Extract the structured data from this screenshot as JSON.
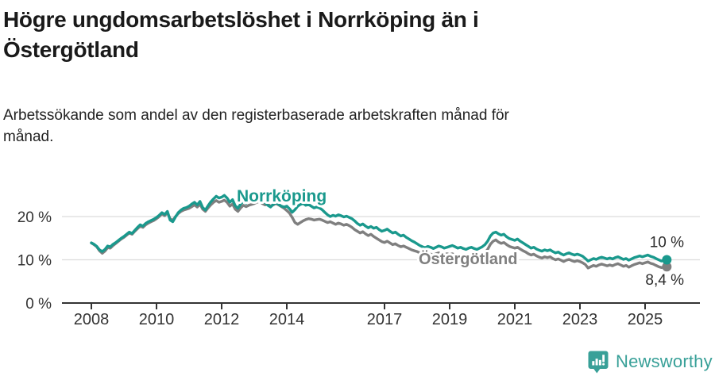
{
  "title_lines": [
    "Högre ungdomsarbetslöshet i Norrköping än i",
    "Östergötland"
  ],
  "subtitle_lines": [
    "Arbetssökande som andel av den registerbaserade arbetskraften månad för",
    "månad."
  ],
  "footer": {
    "brand": "Newsworthy",
    "logo_icon": "newsworthy-chart-speech-bubble-icon"
  },
  "colors": {
    "norrkoping": "#1a998d",
    "ostergotland": "#7f7f7f",
    "axis": "#333333",
    "grid": "#dcdcdc",
    "title": "#1a1a1a",
    "end_label": "#2b2b2b",
    "brand": "#38a098"
  },
  "chart_data": {
    "type": "line",
    "unit": "%",
    "frequency": "monthly",
    "x_start": {
      "year": 2008,
      "month": 1
    },
    "x_end": {
      "year": 2025,
      "month": 9
    },
    "x_tick_years": [
      2008,
      2010,
      2012,
      2014,
      2017,
      2019,
      2021,
      2023,
      2025
    ],
    "y_ticks": [
      {
        "value": 0,
        "label": "0 %"
      },
      {
        "value": 10,
        "label": "10 %"
      },
      {
        "value": 20,
        "label": "20 %"
      }
    ],
    "ylim": [
      0,
      27
    ],
    "grid": "horizontal",
    "series": [
      {
        "name": "Östergötland",
        "color": "#7f7f7f",
        "end_label": "8,4 %",
        "end_value": 8.4,
        "values": [
          13.9,
          13.5,
          13.0,
          12.1,
          11.5,
          12.0,
          12.8,
          12.7,
          13.3,
          13.8,
          14.3,
          14.8,
          15.2,
          15.7,
          16.2,
          15.9,
          16.6,
          17.2,
          17.8,
          17.5,
          18.1,
          18.5,
          18.8,
          19.1,
          19.5,
          20.0,
          20.6,
          20.2,
          20.9,
          19.5,
          19.1,
          20.0,
          20.7,
          21.2,
          21.5,
          21.7,
          21.9,
          22.3,
          22.7,
          22.2,
          22.9,
          21.7,
          21.2,
          22.0,
          22.7,
          23.3,
          23.7,
          23.3,
          23.5,
          23.8,
          23.3,
          22.4,
          22.9,
          21.7,
          21.2,
          22.0,
          22.6,
          22.3,
          22.6,
          22.8,
          23.0,
          23.3,
          23.5,
          23.0,
          22.7,
          22.9,
          22.4,
          22.7,
          23.0,
          22.7,
          22.3,
          21.9,
          21.4,
          20.8,
          19.8,
          18.6,
          18.2,
          18.6,
          19.0,
          19.3,
          19.5,
          19.4,
          19.2,
          19.3,
          19.4,
          19.2,
          18.9,
          18.6,
          18.8,
          18.5,
          18.2,
          18.5,
          18.3,
          18.0,
          18.2,
          17.9,
          17.5,
          17.0,
          16.6,
          16.2,
          16.5,
          16.0,
          15.6,
          15.9,
          15.4,
          15.0,
          14.6,
          14.2,
          14.0,
          14.3,
          13.9,
          13.5,
          13.7,
          13.3,
          13.0,
          13.2,
          12.9,
          12.6,
          12.3,
          12.1,
          11.9,
          11.6,
          11.4,
          11.2,
          11.5,
          11.3,
          11.1,
          11.4,
          11.6,
          11.4,
          11.2,
          11.4,
          11.2,
          11.4,
          11.1,
          10.9,
          11.1,
          10.8,
          10.6,
          10.9,
          11.1,
          10.8,
          10.6,
          10.9,
          11.2,
          11.6,
          12.4,
          13.6,
          14.3,
          14.6,
          14.1,
          13.8,
          14.0,
          13.5,
          13.1,
          12.9,
          12.7,
          12.9,
          12.5,
          12.1,
          11.8,
          11.4,
          11.1,
          11.3,
          10.9,
          10.6,
          10.4,
          10.7,
          10.5,
          10.7,
          10.3,
          10.0,
          10.2,
          9.9,
          9.6,
          9.9,
          10.1,
          9.8,
          9.6,
          9.8,
          9.6,
          9.3,
          8.9,
          8.1,
          8.4,
          8.7,
          8.5,
          8.8,
          9.0,
          8.8,
          8.6,
          8.8,
          8.6,
          8.9,
          9.1,
          8.8,
          8.5,
          8.7,
          8.3,
          8.6,
          8.9,
          9.1,
          9.3,
          9.1,
          9.3,
          9.5,
          9.2,
          9.0,
          8.7,
          8.4,
          8.2,
          8.3,
          8.4
        ]
      },
      {
        "name": "Norrköping",
        "color": "#1a998d",
        "end_label": "10 %",
        "end_value": 10.0,
        "values": [
          13.9,
          13.6,
          13.1,
          12.3,
          11.9,
          12.4,
          13.2,
          13.0,
          13.6,
          14.0,
          14.5,
          15.0,
          15.4,
          15.9,
          16.4,
          16.1,
          16.8,
          17.5,
          18.1,
          17.8,
          18.4,
          18.8,
          19.1,
          19.4,
          19.8,
          20.3,
          20.9,
          20.5,
          21.2,
          19.2,
          18.8,
          19.9,
          20.9,
          21.5,
          21.9,
          22.1,
          22.4,
          22.9,
          23.3,
          22.7,
          23.5,
          22.1,
          21.5,
          22.5,
          23.4,
          24.1,
          24.7,
          24.3,
          24.5,
          24.9,
          24.3,
          23.3,
          23.9,
          22.5,
          21.9,
          22.9,
          23.5,
          23.1,
          23.5,
          23.7,
          23.9,
          24.2,
          24.5,
          23.8,
          23.2,
          22.6,
          22.2,
          22.8,
          23.2,
          22.8,
          22.4,
          22.2,
          22.4,
          21.8,
          21.0,
          21.6,
          22.4,
          22.8,
          23.0,
          22.6,
          22.8,
          22.4,
          22.0,
          22.2,
          22.0,
          21.6,
          21.0,
          20.4,
          20.0,
          20.3,
          20.1,
          20.4,
          20.2,
          19.9,
          20.1,
          19.8,
          19.5,
          19.0,
          18.4,
          18.0,
          18.3,
          17.8,
          17.4,
          17.7,
          17.3,
          17.5,
          17.0,
          16.6,
          16.8,
          17.1,
          16.6,
          16.2,
          16.4,
          15.9,
          15.5,
          15.7,
          15.2,
          14.8,
          14.4,
          14.1,
          13.7,
          13.3,
          13.0,
          12.8,
          13.1,
          12.9,
          12.6,
          12.9,
          13.2,
          13.0,
          12.7,
          12.9,
          13.1,
          13.3,
          13.0,
          12.7,
          12.9,
          12.6,
          12.4,
          12.7,
          12.9,
          12.6,
          12.4,
          12.7,
          13.0,
          13.5,
          14.3,
          15.5,
          16.2,
          16.4,
          16.0,
          15.7,
          15.9,
          15.3,
          14.9,
          14.7,
          14.5,
          14.8,
          14.3,
          13.9,
          13.5,
          13.1,
          12.7,
          12.9,
          12.5,
          12.2,
          12.0,
          12.3,
          12.1,
          12.3,
          11.9,
          11.6,
          11.8,
          11.4,
          11.1,
          11.4,
          11.6,
          11.3,
          11.1,
          11.3,
          11.1,
          10.8,
          10.3,
          9.7,
          10.0,
          10.3,
          10.1,
          10.4,
          10.6,
          10.4,
          10.2,
          10.4,
          10.2,
          10.5,
          10.7,
          10.4,
          10.1,
          10.3,
          9.9,
          10.2,
          10.5,
          10.7,
          10.9,
          10.7,
          10.9,
          11.1,
          10.8,
          10.6,
          10.3,
          10.0,
          9.7,
          9.9,
          10.0
        ]
      }
    ],
    "annotations": [
      {
        "text": "Norrköping",
        "series": "Norrköping"
      },
      {
        "text": "Östergötland",
        "series": "Östergötland"
      }
    ]
  }
}
